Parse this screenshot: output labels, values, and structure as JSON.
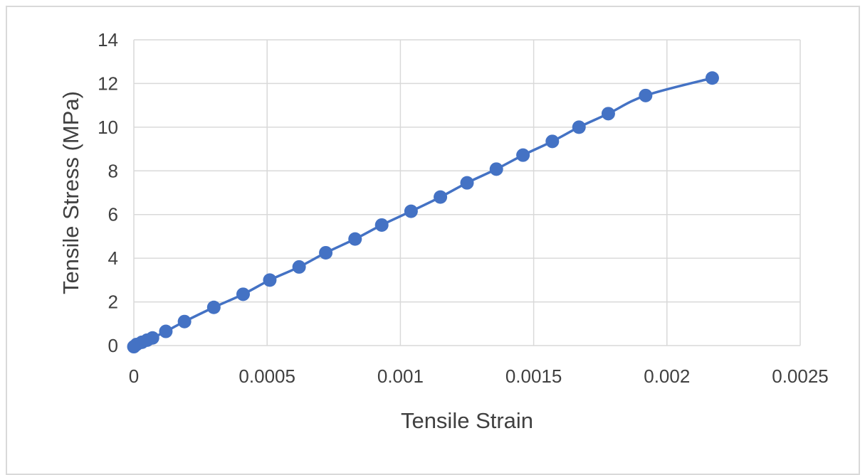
{
  "chart_data": {
    "type": "scatter",
    "title": "",
    "xlabel": "Tensile Strain",
    "ylabel": "Tensile Stress (MPa)",
    "xlim": [
      0,
      0.0025
    ],
    "ylim": [
      0,
      14
    ],
    "xticks": [
      0,
      0.0005,
      0.001,
      0.0015,
      0.002,
      0.0025
    ],
    "yticks": [
      0,
      2,
      4,
      6,
      8,
      10,
      12,
      14
    ],
    "xtick_labels": [
      "0",
      "0.0005",
      "0.001",
      "0.0015",
      "0.002",
      "0.0025"
    ],
    "ytick_labels": [
      "0",
      "2",
      "4",
      "6",
      "8",
      "10",
      "12",
      "14"
    ],
    "grid": true,
    "legend": "none",
    "line_style": "smooth-line-with-markers",
    "series_color": "#4472C4",
    "grid_color": "#d9d9d9",
    "series": [
      {
        "x": [
          0.0,
          1e-05,
          3e-05,
          5e-05,
          7e-05,
          0.00012,
          0.00019,
          0.0003,
          0.00041,
          0.00051,
          0.00062,
          0.00072,
          0.00083,
          0.00093,
          0.00104,
          0.00115,
          0.00125,
          0.00136,
          0.00146,
          0.00157,
          0.00167,
          0.00178,
          0.00192,
          0.00217
        ],
        "y": [
          -0.05,
          0.05,
          0.15,
          0.25,
          0.35,
          0.65,
          1.1,
          1.75,
          2.35,
          3.0,
          3.6,
          4.25,
          4.88,
          5.52,
          6.15,
          6.8,
          7.45,
          8.08,
          8.72,
          9.35,
          10.0,
          10.62,
          11.45,
          12.25
        ]
      }
    ]
  }
}
